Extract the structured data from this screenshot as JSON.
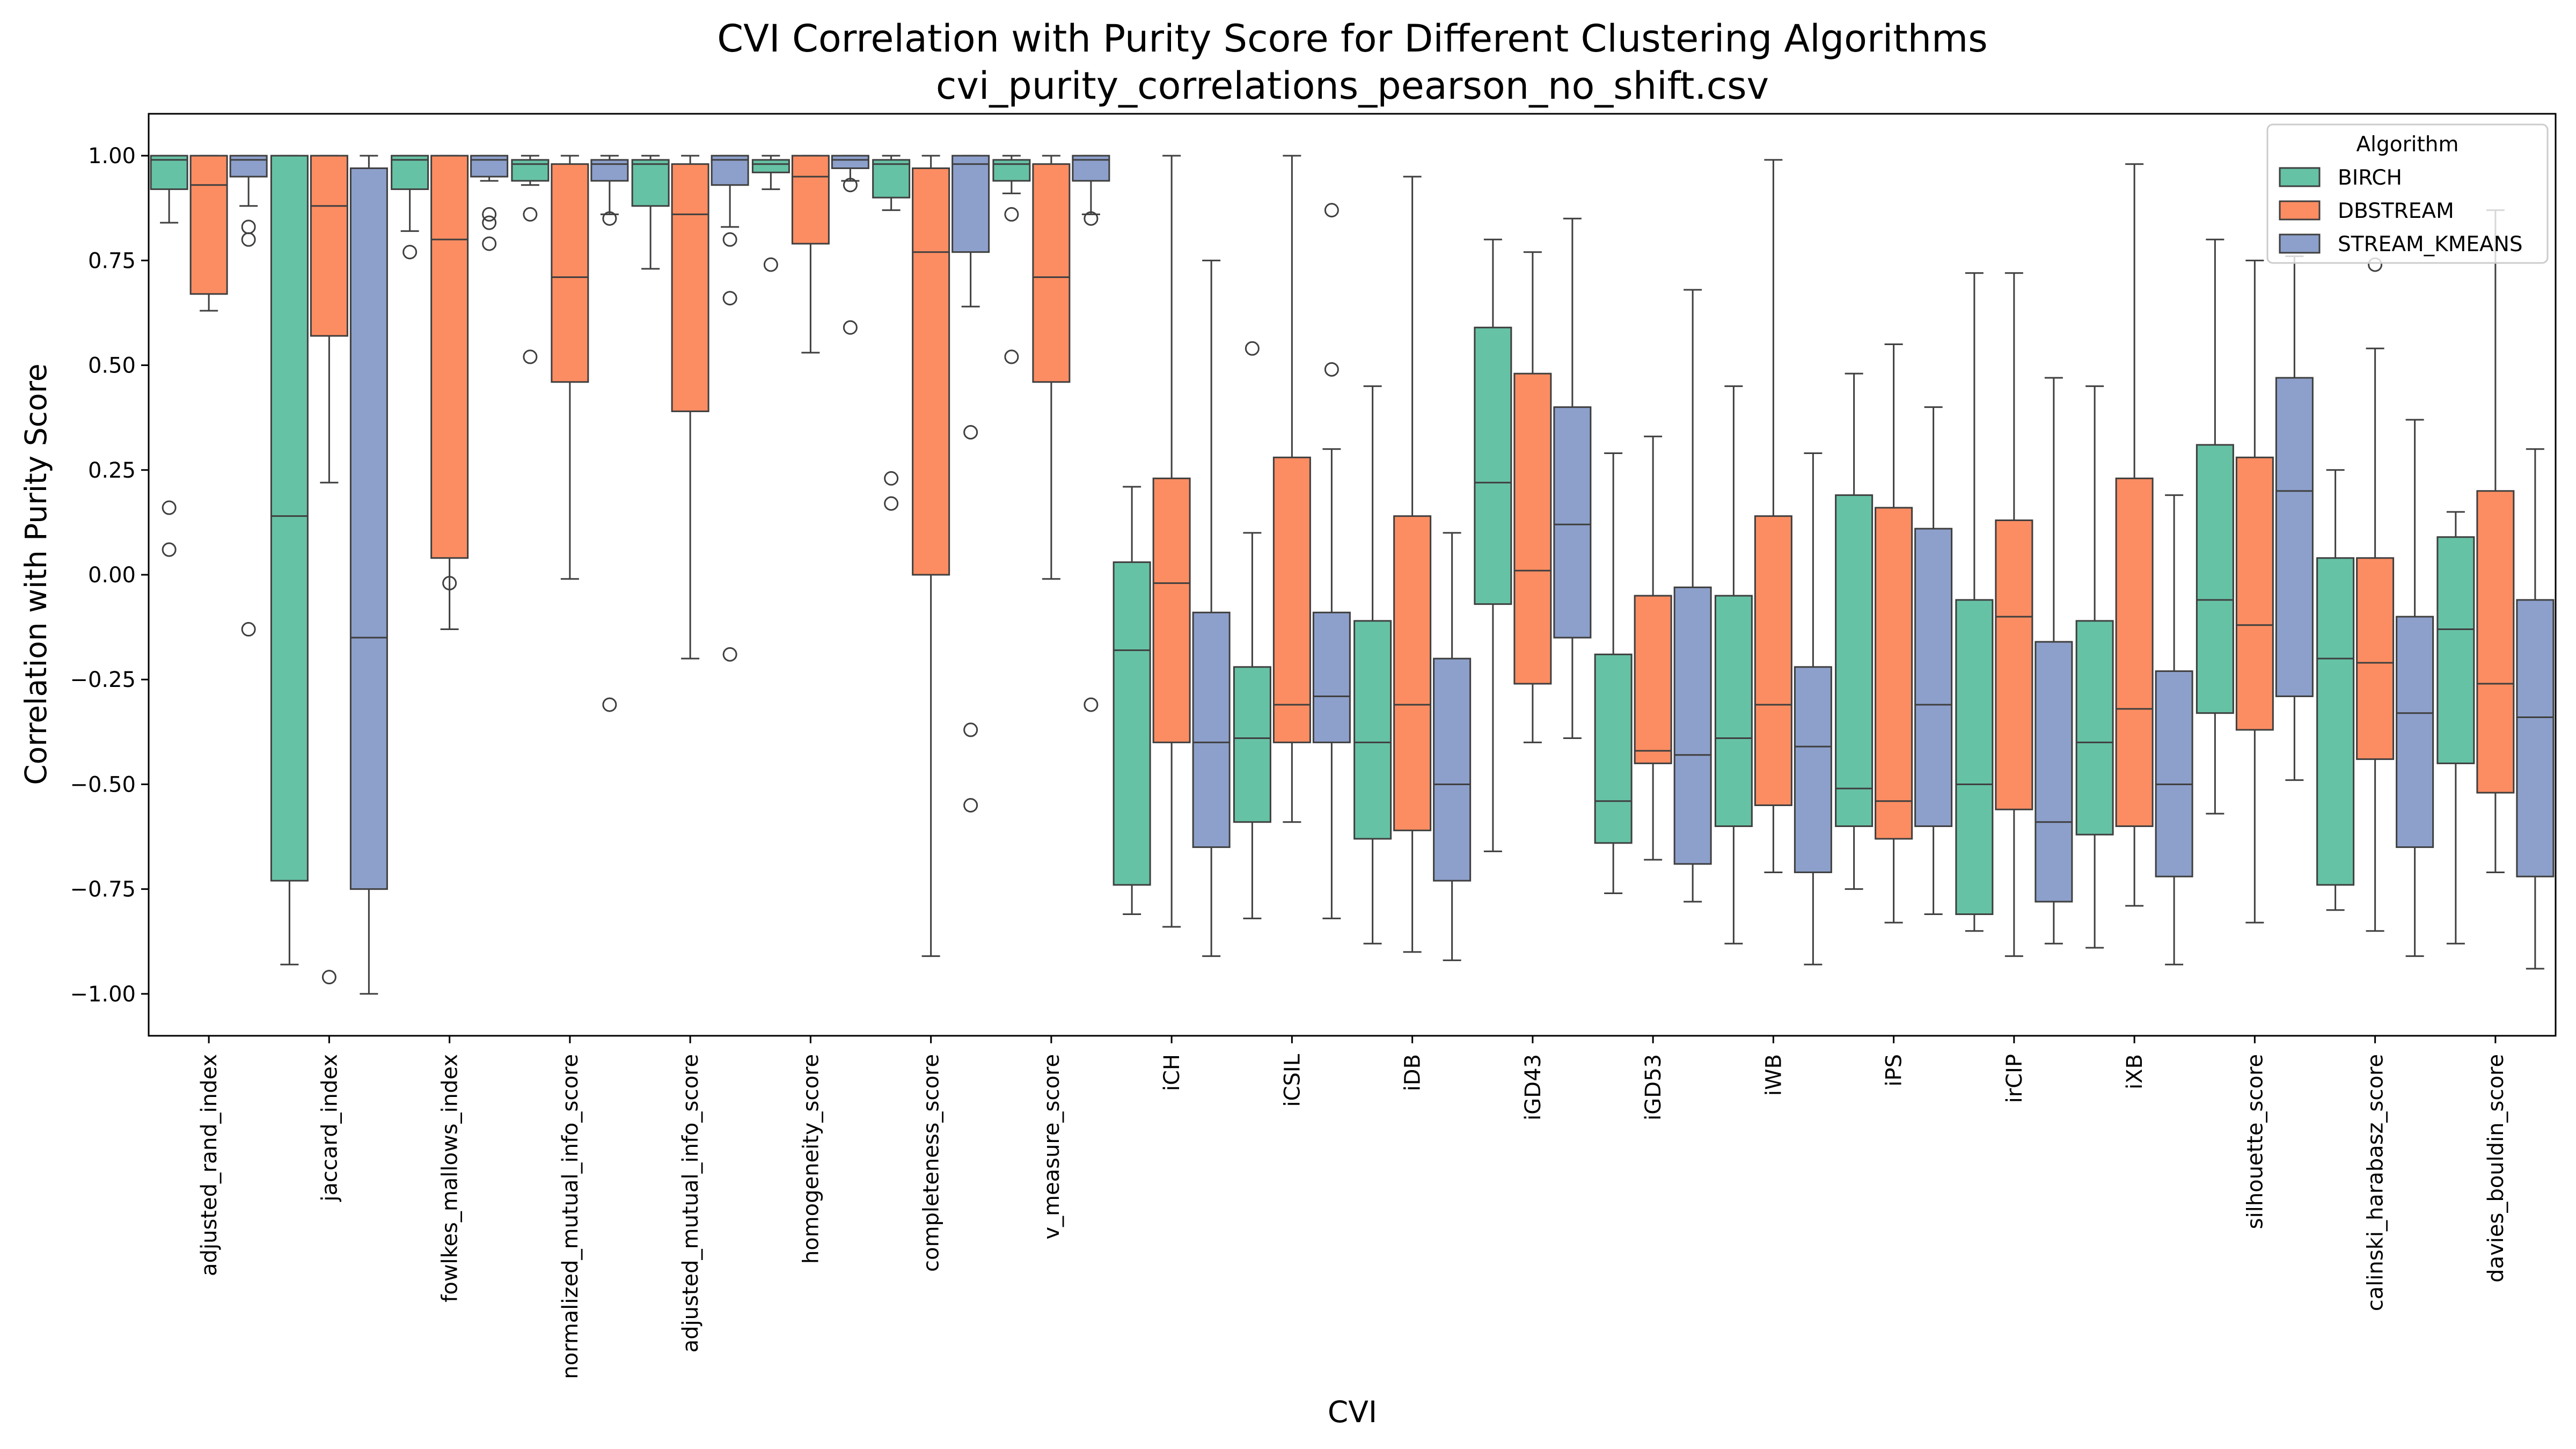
{
  "chart_data": {
    "type": "box",
    "title": "CVI Correlation with Purity Score for Different Clustering Algorithms",
    "subtitle": "cvi_purity_correlations_pearson_no_shift.csv",
    "xlabel": "CVI",
    "ylabel": "Correlation with Purity Score",
    "ylim": [
      -1.1,
      1.1
    ],
    "yticks": [
      "1.00",
      "0.75",
      "0.50",
      "0.25",
      "0.00",
      "−0.25",
      "−0.50",
      "−0.75",
      "−1.00"
    ],
    "ytick_values": [
      1.0,
      0.75,
      0.5,
      0.25,
      0.0,
      -0.25,
      -0.5,
      -0.75,
      -1.0
    ],
    "grid": false,
    "legend": {
      "title": "Algorithm",
      "placement": "top-right"
    },
    "categories": [
      "adjusted_rand_index",
      "jaccard_index",
      "fowlkes_mallows_index",
      "normalized_mutual_info_score",
      "adjusted_mutual_info_score",
      "homogeneity_score",
      "completeness_score",
      "v_measure_score",
      "iCH",
      "iCSIL",
      "iDB",
      "iGD43",
      "iGD53",
      "iWB",
      "iPS",
      "irCIP",
      "iXB",
      "silhouette_score",
      "calinski_harabasz_score",
      "davies_bouldin_score"
    ],
    "series": [
      {
        "name": "BIRCH",
        "color": "#66c2a5",
        "boxes": [
          {
            "whislo": 0.84,
            "q1": 0.92,
            "med": 0.99,
            "q3": 1.0,
            "whishi": 1.0,
            "fliers": [
              0.16,
              0.06
            ]
          },
          {
            "whislo": -0.93,
            "q1": -0.73,
            "med": 0.14,
            "q3": 1.0,
            "whishi": 1.0,
            "fliers": []
          },
          {
            "whislo": 0.82,
            "q1": 0.92,
            "med": 0.99,
            "q3": 1.0,
            "whishi": 1.0,
            "fliers": [
              0.77
            ]
          },
          {
            "whislo": 0.93,
            "q1": 0.94,
            "med": 0.98,
            "q3": 0.99,
            "whishi": 1.0,
            "fliers": [
              0.86,
              0.52
            ]
          },
          {
            "whislo": 0.73,
            "q1": 0.88,
            "med": 0.98,
            "q3": 0.99,
            "whishi": 1.0,
            "fliers": []
          },
          {
            "whislo": 0.92,
            "q1": 0.96,
            "med": 0.98,
            "q3": 0.99,
            "whishi": 1.0,
            "fliers": [
              0.74
            ]
          },
          {
            "whislo": 0.87,
            "q1": 0.9,
            "med": 0.98,
            "q3": 0.99,
            "whishi": 1.0,
            "fliers": [
              0.23,
              0.17
            ]
          },
          {
            "whislo": 0.91,
            "q1": 0.94,
            "med": 0.98,
            "q3": 0.99,
            "whishi": 1.0,
            "fliers": [
              0.86,
              0.52
            ]
          },
          {
            "whislo": -0.81,
            "q1": -0.74,
            "med": -0.18,
            "q3": 0.03,
            "whishi": 0.21,
            "fliers": []
          },
          {
            "whislo": -0.82,
            "q1": -0.59,
            "med": -0.39,
            "q3": -0.22,
            "whishi": 0.1,
            "fliers": [
              0.54
            ]
          },
          {
            "whislo": -0.88,
            "q1": -0.63,
            "med": -0.4,
            "q3": -0.11,
            "whishi": 0.45,
            "fliers": []
          },
          {
            "whislo": -0.66,
            "q1": -0.07,
            "med": 0.22,
            "q3": 0.59,
            "whishi": 0.8,
            "fliers": []
          },
          {
            "whislo": -0.76,
            "q1": -0.64,
            "med": -0.54,
            "q3": -0.19,
            "whishi": 0.29,
            "fliers": []
          },
          {
            "whislo": -0.88,
            "q1": -0.6,
            "med": -0.39,
            "q3": -0.05,
            "whishi": 0.45,
            "fliers": []
          },
          {
            "whislo": -0.75,
            "q1": -0.6,
            "med": -0.51,
            "q3": 0.19,
            "whishi": 0.48,
            "fliers": []
          },
          {
            "whislo": -0.85,
            "q1": -0.81,
            "med": -0.5,
            "q3": -0.06,
            "whishi": 0.72,
            "fliers": []
          },
          {
            "whislo": -0.89,
            "q1": -0.62,
            "med": -0.4,
            "q3": -0.11,
            "whishi": 0.45,
            "fliers": []
          },
          {
            "whislo": -0.57,
            "q1": -0.33,
            "med": -0.06,
            "q3": 0.31,
            "whishi": 0.8,
            "fliers": []
          },
          {
            "whislo": -0.8,
            "q1": -0.74,
            "med": -0.2,
            "q3": 0.04,
            "whishi": 0.25,
            "fliers": []
          },
          {
            "whislo": -0.88,
            "q1": -0.45,
            "med": -0.13,
            "q3": 0.09,
            "whishi": 0.15,
            "fliers": []
          }
        ]
      },
      {
        "name": "DBSTREAM",
        "color": "#fc8d62",
        "boxes": [
          {
            "whislo": 0.63,
            "q1": 0.67,
            "med": 0.93,
            "q3": 1.0,
            "whishi": 1.0,
            "fliers": []
          },
          {
            "whislo": 0.22,
            "q1": 0.57,
            "med": 0.88,
            "q3": 1.0,
            "whishi": 1.0,
            "fliers": [
              -0.96
            ]
          },
          {
            "whislo": -0.13,
            "q1": 0.04,
            "med": 0.8,
            "q3": 1.0,
            "whishi": 1.0,
            "fliers": [
              -0.02
            ]
          },
          {
            "whislo": -0.01,
            "q1": 0.46,
            "med": 0.71,
            "q3": 0.98,
            "whishi": 1.0,
            "fliers": []
          },
          {
            "whislo": -0.2,
            "q1": 0.39,
            "med": 0.86,
            "q3": 0.98,
            "whishi": 1.0,
            "fliers": []
          },
          {
            "whislo": 0.53,
            "q1": 0.79,
            "med": 0.95,
            "q3": 1.0,
            "whishi": 1.0,
            "fliers": []
          },
          {
            "whislo": -0.91,
            "q1": 0.0,
            "med": 0.77,
            "q3": 0.97,
            "whishi": 1.0,
            "fliers": []
          },
          {
            "whislo": -0.01,
            "q1": 0.46,
            "med": 0.71,
            "q3": 0.98,
            "whishi": 1.0,
            "fliers": []
          },
          {
            "whislo": -0.84,
            "q1": -0.4,
            "med": -0.02,
            "q3": 0.23,
            "whishi": 1.0,
            "fliers": []
          },
          {
            "whislo": -0.59,
            "q1": -0.4,
            "med": -0.31,
            "q3": 0.28,
            "whishi": 1.0,
            "fliers": []
          },
          {
            "whislo": -0.9,
            "q1": -0.61,
            "med": -0.31,
            "q3": 0.14,
            "whishi": 0.95,
            "fliers": []
          },
          {
            "whislo": -0.4,
            "q1": -0.26,
            "med": 0.01,
            "q3": 0.48,
            "whishi": 0.77,
            "fliers": []
          },
          {
            "whislo": -0.68,
            "q1": -0.45,
            "med": -0.42,
            "q3": -0.05,
            "whishi": 0.33,
            "fliers": []
          },
          {
            "whislo": -0.71,
            "q1": -0.55,
            "med": -0.31,
            "q3": 0.14,
            "whishi": 0.99,
            "fliers": []
          },
          {
            "whislo": -0.83,
            "q1": -0.63,
            "med": -0.54,
            "q3": 0.16,
            "whishi": 0.55,
            "fliers": []
          },
          {
            "whislo": -0.91,
            "q1": -0.56,
            "med": -0.1,
            "q3": 0.13,
            "whishi": 0.72,
            "fliers": []
          },
          {
            "whislo": -0.79,
            "q1": -0.6,
            "med": -0.32,
            "q3": 0.23,
            "whishi": 0.98,
            "fliers": []
          },
          {
            "whislo": -0.83,
            "q1": -0.37,
            "med": -0.12,
            "q3": 0.28,
            "whishi": 0.75,
            "fliers": []
          },
          {
            "whislo": -0.85,
            "q1": -0.44,
            "med": -0.21,
            "q3": 0.04,
            "whishi": 0.54,
            "fliers": [
              0.74
            ]
          },
          {
            "whislo": -0.71,
            "q1": -0.52,
            "med": -0.26,
            "q3": 0.2,
            "whishi": 0.87,
            "fliers": []
          }
        ]
      },
      {
        "name": "STREAM_KMEANS",
        "color": "#8da0cb",
        "boxes": [
          {
            "whislo": 0.88,
            "q1": 0.95,
            "med": 0.99,
            "q3": 1.0,
            "whishi": 1.0,
            "fliers": [
              0.83,
              0.8,
              -0.13
            ]
          },
          {
            "whislo": -1.0,
            "q1": -0.75,
            "med": -0.15,
            "q3": 0.97,
            "whishi": 1.0,
            "fliers": []
          },
          {
            "whislo": 0.94,
            "q1": 0.95,
            "med": 0.99,
            "q3": 1.0,
            "whishi": 1.0,
            "fliers": [
              0.86,
              0.84,
              0.79
            ]
          },
          {
            "whislo": 0.86,
            "q1": 0.94,
            "med": 0.98,
            "q3": 0.99,
            "whishi": 1.0,
            "fliers": [
              0.85,
              -0.31
            ]
          },
          {
            "whislo": 0.83,
            "q1": 0.93,
            "med": 0.99,
            "q3": 1.0,
            "whishi": 1.0,
            "fliers": [
              0.8,
              0.66,
              -0.19
            ]
          },
          {
            "whislo": 0.94,
            "q1": 0.97,
            "med": 0.99,
            "q3": 1.0,
            "whishi": 1.0,
            "fliers": [
              0.93,
              0.59
            ]
          },
          {
            "whislo": 0.64,
            "q1": 0.77,
            "med": 0.98,
            "q3": 1.0,
            "whishi": 1.0,
            "fliers": [
              0.34,
              -0.37,
              -0.55
            ]
          },
          {
            "whislo": 0.86,
            "q1": 0.94,
            "med": 0.99,
            "q3": 1.0,
            "whishi": 1.0,
            "fliers": [
              0.85,
              -0.31
            ]
          },
          {
            "whislo": -0.91,
            "q1": -0.65,
            "med": -0.4,
            "q3": -0.09,
            "whishi": 0.75,
            "fliers": []
          },
          {
            "whislo": -0.82,
            "q1": -0.4,
            "med": -0.29,
            "q3": -0.09,
            "whishi": 0.3,
            "fliers": [
              0.87,
              0.49
            ]
          },
          {
            "whislo": -0.92,
            "q1": -0.73,
            "med": -0.5,
            "q3": -0.2,
            "whishi": 0.1,
            "fliers": []
          },
          {
            "whislo": -0.39,
            "q1": -0.15,
            "med": 0.12,
            "q3": 0.4,
            "whishi": 0.85,
            "fliers": []
          },
          {
            "whislo": -0.78,
            "q1": -0.69,
            "med": -0.43,
            "q3": -0.03,
            "whishi": 0.68,
            "fliers": []
          },
          {
            "whislo": -0.93,
            "q1": -0.71,
            "med": -0.41,
            "q3": -0.22,
            "whishi": 0.29,
            "fliers": []
          },
          {
            "whislo": -0.81,
            "q1": -0.6,
            "med": -0.31,
            "q3": 0.11,
            "whishi": 0.4,
            "fliers": []
          },
          {
            "whislo": -0.88,
            "q1": -0.78,
            "med": -0.59,
            "q3": -0.16,
            "whishi": 0.47,
            "fliers": []
          },
          {
            "whislo": -0.93,
            "q1": -0.72,
            "med": -0.5,
            "q3": -0.23,
            "whishi": 0.19,
            "fliers": []
          },
          {
            "whislo": -0.49,
            "q1": -0.29,
            "med": 0.2,
            "q3": 0.47,
            "whishi": 0.76,
            "fliers": []
          },
          {
            "whislo": -0.91,
            "q1": -0.65,
            "med": -0.33,
            "q3": -0.1,
            "whishi": 0.37,
            "fliers": []
          },
          {
            "whislo": -0.94,
            "q1": -0.72,
            "med": -0.34,
            "q3": -0.06,
            "whishi": 0.3,
            "fliers": []
          }
        ]
      }
    ]
  }
}
